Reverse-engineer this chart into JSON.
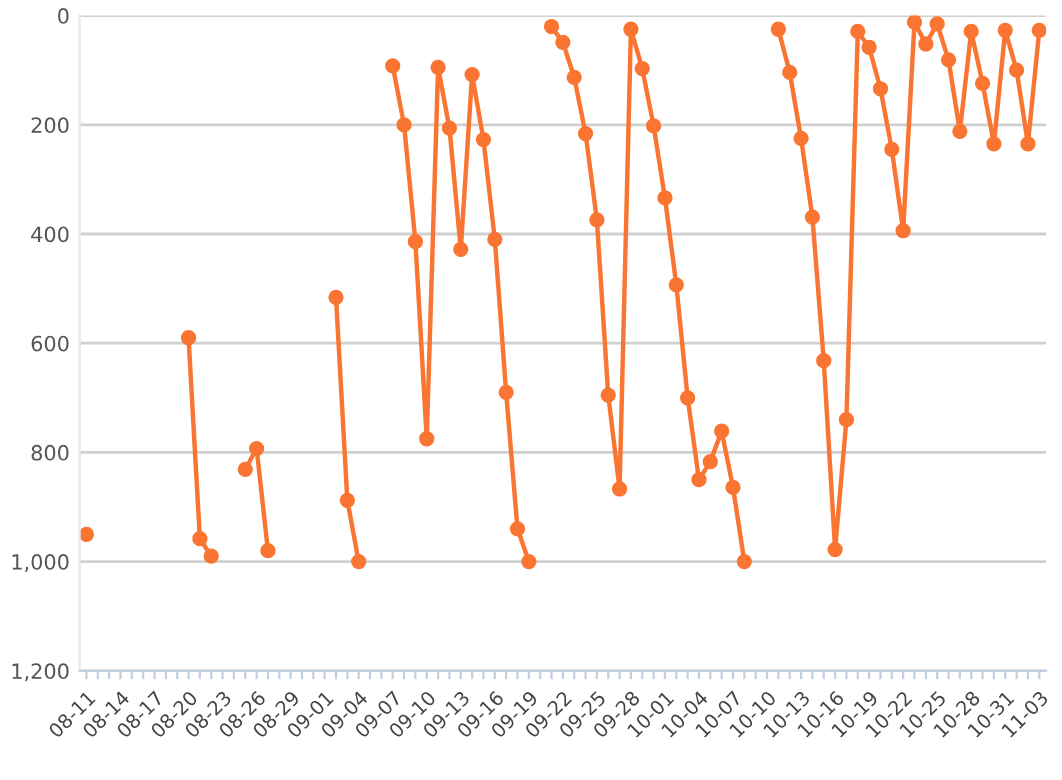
{
  "chart_data": {
    "type": "line",
    "categories": [
      "08-11",
      null,
      null,
      "08-14",
      null,
      null,
      "08-17",
      null,
      null,
      "08-20",
      null,
      null,
      "08-23",
      null,
      null,
      "08-26",
      null,
      null,
      "08-29",
      null,
      null,
      "09-01",
      null,
      null,
      "09-04",
      null,
      null,
      "09-07",
      null,
      null,
      "09-10",
      null,
      null,
      "09-13",
      null,
      null,
      "09-16",
      null,
      null,
      "09-19",
      null,
      null,
      "09-22",
      null,
      null,
      "09-25",
      null,
      null,
      "09-28",
      null,
      null,
      "10-01",
      null,
      null,
      "10-04",
      null,
      null,
      "10-07",
      null,
      null,
      "10-10",
      null,
      null,
      "10-13",
      null,
      null,
      "10-16",
      null,
      null,
      "10-19",
      null,
      null,
      "10-22",
      null,
      null,
      "10-25",
      null,
      null,
      "10-28",
      null,
      null,
      "10-31",
      null,
      null,
      "11-03"
    ],
    "series": [
      {
        "color": "#fa7532",
        "values": [
          950,
          null,
          null,
          null,
          null,
          null,
          null,
          null,
          null,
          590,
          958,
          990,
          null,
          null,
          831,
          793,
          980,
          null,
          null,
          null,
          null,
          null,
          516,
          888,
          1000,
          null,
          null,
          92,
          200,
          414,
          775,
          95,
          206,
          428,
          108,
          227,
          410,
          690,
          940,
          1000,
          null,
          20,
          49,
          113,
          216,
          374,
          695,
          867,
          25,
          97,
          202,
          334,
          493,
          700,
          850,
          817,
          761,
          864,
          1000,
          null,
          null,
          25,
          104,
          225,
          369,
          632,
          978,
          740,
          29,
          58,
          134,
          245,
          394,
          12,
          52,
          15,
          81,
          212,
          29,
          124,
          235,
          27,
          100,
          235,
          27
        ]
      }
    ],
    "ylim": [
      1200,
      0
    ],
    "yticks": [
      0,
      200,
      400,
      600,
      800,
      {
        "value": 1000,
        "label": "1,000"
      },
      {
        "value": 1200,
        "label": "1,200"
      }
    ],
    "grid": "y",
    "marker": "circle",
    "line_style": "solid"
  }
}
